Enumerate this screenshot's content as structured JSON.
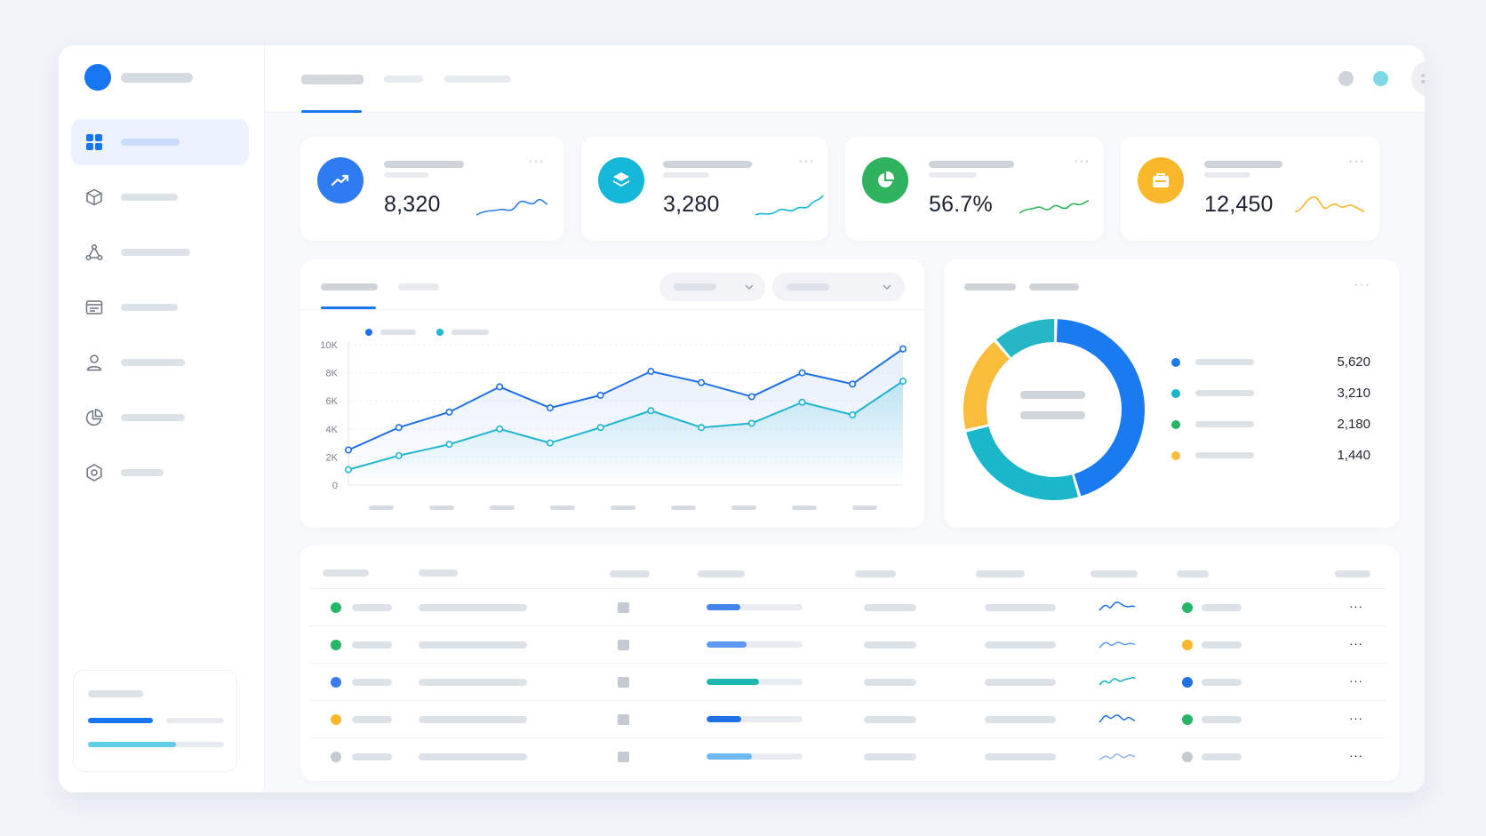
{
  "stats": [
    {
      "value": "8,320",
      "icon": "trend-up-icon",
      "color": "#2f7bf1"
    },
    {
      "value": "3,280",
      "icon": "layers-icon",
      "color": "#15b8d8"
    },
    {
      "value": "56.7%",
      "icon": "pie-icon",
      "color": "#2fb35e"
    },
    {
      "value": "12,450",
      "icon": "wallet-icon",
      "color": "#f9b82c"
    }
  ],
  "line_chart": {
    "chart_data": {
      "type": "line",
      "y_ticks": [
        "10K",
        "8K",
        "6K",
        "4K",
        "2K",
        "0"
      ],
      "ylim": [
        0,
        10000
      ],
      "grid": true,
      "series": [
        {
          "color": "#1f6fe5",
          "values": [
            2500,
            4100,
            5200,
            7000,
            5500,
            6400,
            8100,
            7300,
            6300,
            8000,
            7200,
            9700
          ]
        },
        {
          "color": "#22b8cf",
          "values": [
            1100,
            2100,
            2900,
            4000,
            3000,
            4100,
            5300,
            4100,
            4400,
            5900,
            5000,
            7400
          ]
        }
      ]
    }
  },
  "donut": {
    "chart_data": {
      "type": "pie",
      "values": [
        5620,
        3210,
        2180,
        1440
      ],
      "colors": [
        "#1a7bf0",
        "#1ab6c9",
        "#f9bd3b",
        "#25b7c6"
      ]
    },
    "legend": [
      {
        "value": "5,620",
        "color": "#1a7bf0"
      },
      {
        "value": "3,210",
        "color": "#1ab6c9"
      },
      {
        "value": "2,180",
        "color": "#27b567"
      },
      {
        "value": "1,440",
        "color": "#f9bd3b"
      }
    ]
  },
  "table": {
    "rows": [
      {
        "status_color": "#27b567",
        "progress": 0.35,
        "bar_color": "#4283ec",
        "tag_color": "#27b567",
        "spark_color": "#1f6fe5",
        "more": "···"
      },
      {
        "status_color": "#27b567",
        "progress": 0.42,
        "bar_color": "#5b9af0",
        "tag_color": "#f9b82c",
        "spark_color": "#5b9af0",
        "more": "···"
      },
      {
        "status_color": "#3b7bee",
        "progress": 0.55,
        "bar_color": "#1fb8b0",
        "tag_color": "#1f6fe5",
        "spark_color": "#17b3c0",
        "more": "···"
      },
      {
        "status_color": "#f9b82c",
        "progress": 0.36,
        "bar_color": "#1f6fe5",
        "tag_color": "#27b567",
        "spark_color": "#1f6fe5",
        "more": "···"
      },
      {
        "status_color": "#c5c9d1",
        "progress": 0.47,
        "bar_color": "#6fb7f3",
        "tag_color": "#c5c9d1",
        "spark_color": "#8fb6ee",
        "more": "···"
      }
    ]
  },
  "menu_dots": "···"
}
